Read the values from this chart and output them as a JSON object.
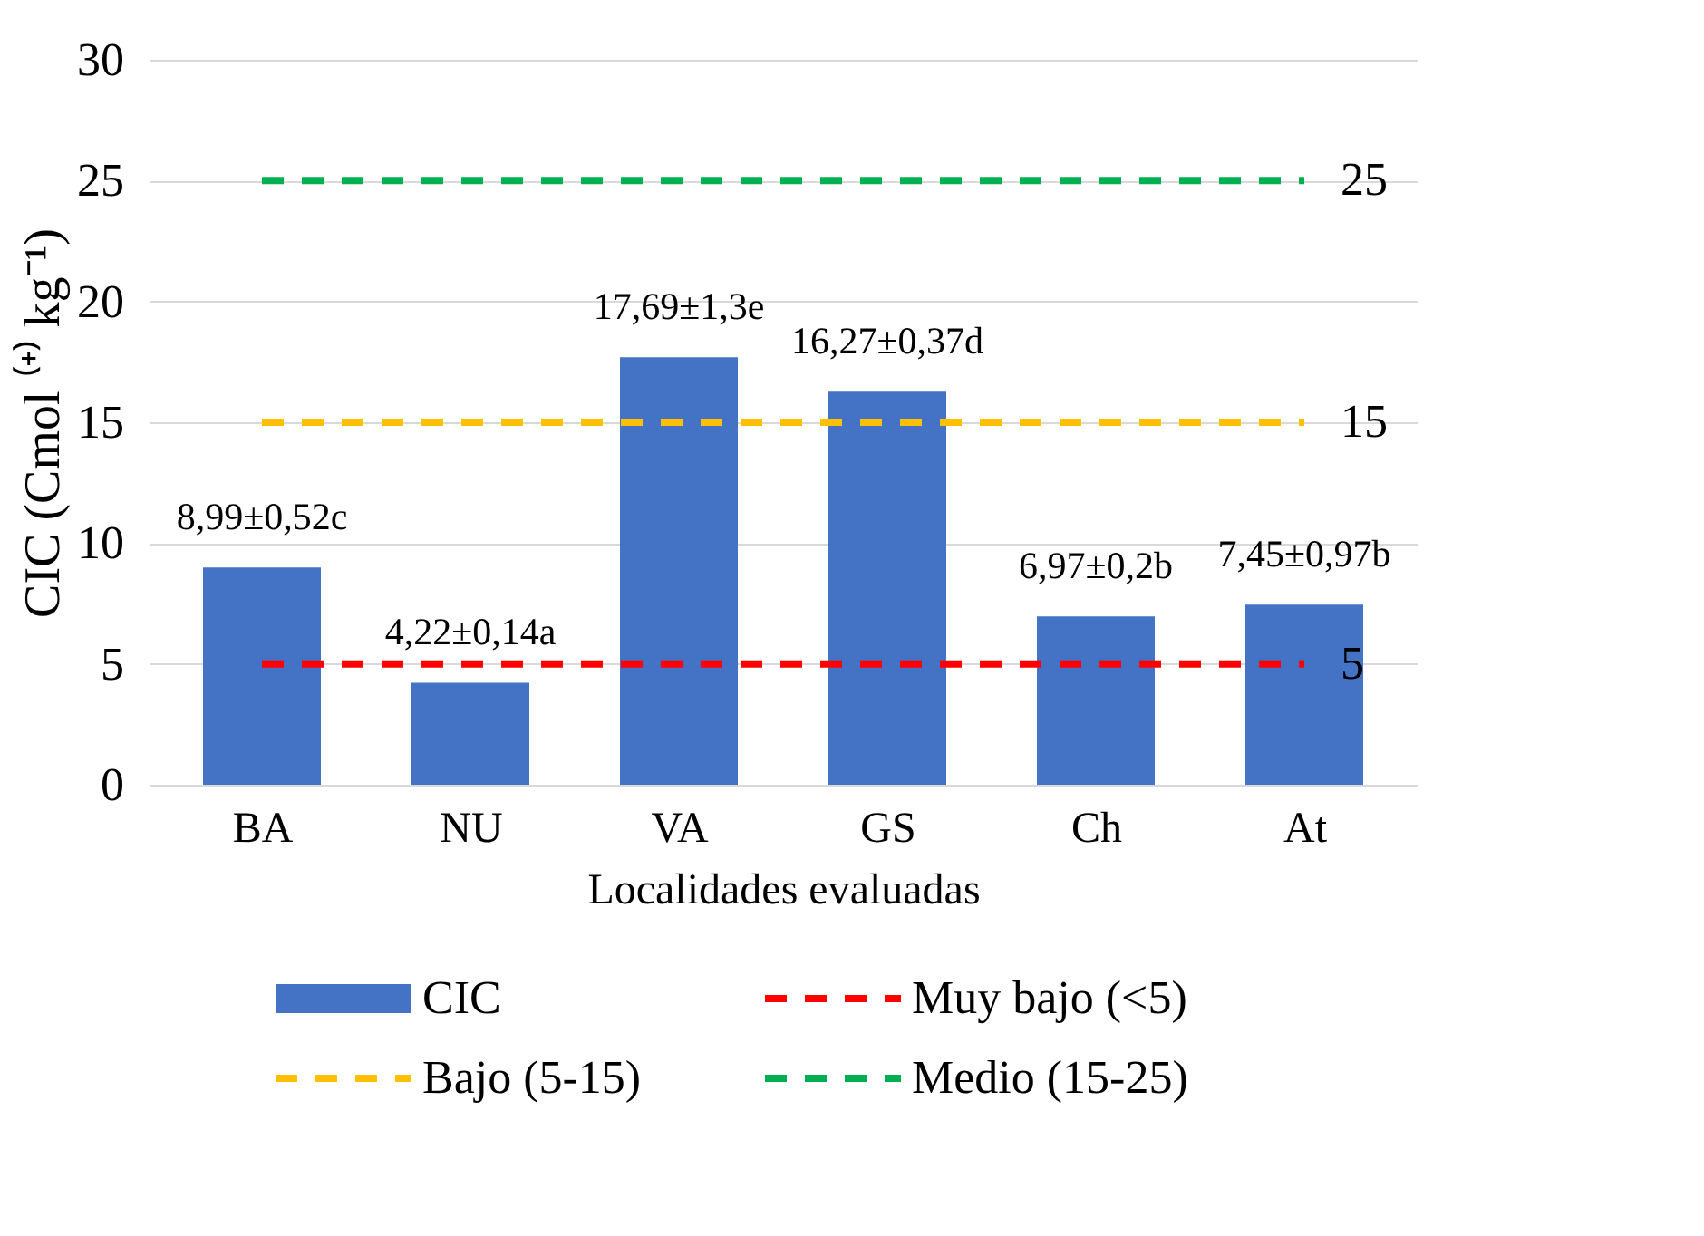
{
  "chart_data": {
    "type": "bar",
    "xlabel": "Localidades evaluadas",
    "ylabel": "CIC (Cmol ⁽⁺⁾ kg⁻¹)",
    "categories": [
      "BA",
      "NU",
      "VA",
      "GS",
      "Ch",
      "At"
    ],
    "series": [
      {
        "name": "CIC",
        "color": "#4472c4",
        "values": [
          8.99,
          4.22,
          17.69,
          16.27,
          6.97,
          7.45
        ],
        "value_labels": [
          "8,99±0,52c",
          "4,22±0,14a",
          "17,69±1,3e",
          "16,27±0,37d",
          "6,97±0,2b",
          "7,45±0,97b"
        ]
      },
      {
        "name": "Muy bajo (<5)",
        "type": "line",
        "line_style": "dashed",
        "color": "#ff0000",
        "values": [
          5,
          5,
          5,
          5,
          5,
          5
        ],
        "value_labels": [
          null,
          null,
          null,
          null,
          null,
          "5"
        ]
      },
      {
        "name": "Bajo (5-15)",
        "type": "line",
        "line_style": "dashed",
        "color": "#ffc000",
        "values": [
          15,
          15,
          15,
          15,
          15,
          15
        ],
        "value_labels": [
          null,
          null,
          null,
          null,
          null,
          "15"
        ]
      },
      {
        "name": "Medio (15-25)",
        "type": "line",
        "line_style": "dashed",
        "color": "#00b050",
        "values": [
          25,
          25,
          25,
          25,
          25,
          25
        ],
        "value_labels": [
          null,
          null,
          null,
          null,
          null,
          "25"
        ]
      }
    ],
    "ylim": [
      0,
      30
    ],
    "yticks": [
      0,
      5,
      10,
      15,
      20,
      25,
      30
    ],
    "grid": "y",
    "legend": "bottom"
  }
}
